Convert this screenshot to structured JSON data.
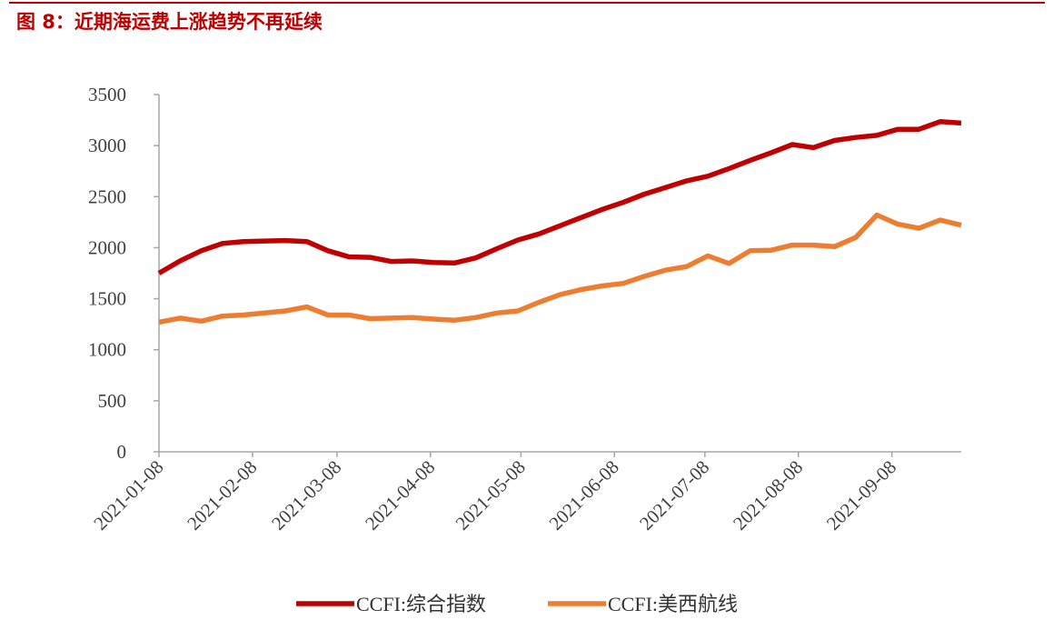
{
  "header": {
    "title": "图 8：近期海运费上涨趋势不再延续"
  },
  "chart_data": {
    "type": "line",
    "title": "图 8：近期海运费上涨趋势不再延续",
    "xlabel": "",
    "ylabel": "",
    "ylim": [
      0,
      3500
    ],
    "yticks": [
      "0",
      "500",
      "1000",
      "1500",
      "2000",
      "2500",
      "3000",
      "3500"
    ],
    "xticks": [
      "2021-01-08",
      "2021-02-08",
      "2021-03-08",
      "2021-04-08",
      "2021-05-08",
      "2021-06-08",
      "2021-07-08",
      "2021-08-08",
      "2021-09-08"
    ],
    "xrange": [
      "2021-01-08",
      "2021-10-01"
    ],
    "grid": false,
    "legend": "bottom",
    "x": [
      "2021-01-08",
      "2021-01-15",
      "2021-01-22",
      "2021-01-29",
      "2021-02-05",
      "2021-02-12",
      "2021-02-19",
      "2021-02-26",
      "2021-03-05",
      "2021-03-12",
      "2021-03-19",
      "2021-03-26",
      "2021-04-02",
      "2021-04-09",
      "2021-04-16",
      "2021-04-23",
      "2021-04-30",
      "2021-05-07",
      "2021-05-14",
      "2021-05-21",
      "2021-05-28",
      "2021-06-04",
      "2021-06-11",
      "2021-06-18",
      "2021-06-25",
      "2021-07-02",
      "2021-07-09",
      "2021-07-16",
      "2021-07-23",
      "2021-07-30",
      "2021-08-06",
      "2021-08-13",
      "2021-08-20",
      "2021-08-27",
      "2021-09-03",
      "2021-09-10",
      "2021-09-17",
      "2021-09-24",
      "2021-10-01"
    ],
    "series": [
      {
        "name": "CCFI:综合指数",
        "color": "#c00000",
        "values": [
          1750,
          1870,
          1970,
          2040,
          2060,
          2065,
          2070,
          2060,
          1970,
          1910,
          1905,
          1865,
          1870,
          1855,
          1850,
          1900,
          1990,
          2075,
          2135,
          2215,
          2295,
          2375,
          2445,
          2525,
          2590,
          2655,
          2700,
          2775,
          2855,
          2930,
          3010,
          2980,
          3050,
          3080,
          3100,
          3160,
          3160,
          3235,
          3220
        ]
      },
      {
        "name": "CCFI:美西航线",
        "color": "#ed7d31",
        "values": [
          1270,
          1310,
          1280,
          1330,
          1340,
          1360,
          1380,
          1420,
          1340,
          1340,
          1305,
          1310,
          1315,
          1300,
          1290,
          1315,
          1360,
          1380,
          1465,
          1540,
          1590,
          1625,
          1650,
          1720,
          1780,
          1815,
          1920,
          1845,
          1970,
          1975,
          2025,
          2025,
          2010,
          2100,
          2320,
          2230,
          2190,
          2270,
          2220
        ]
      }
    ]
  }
}
